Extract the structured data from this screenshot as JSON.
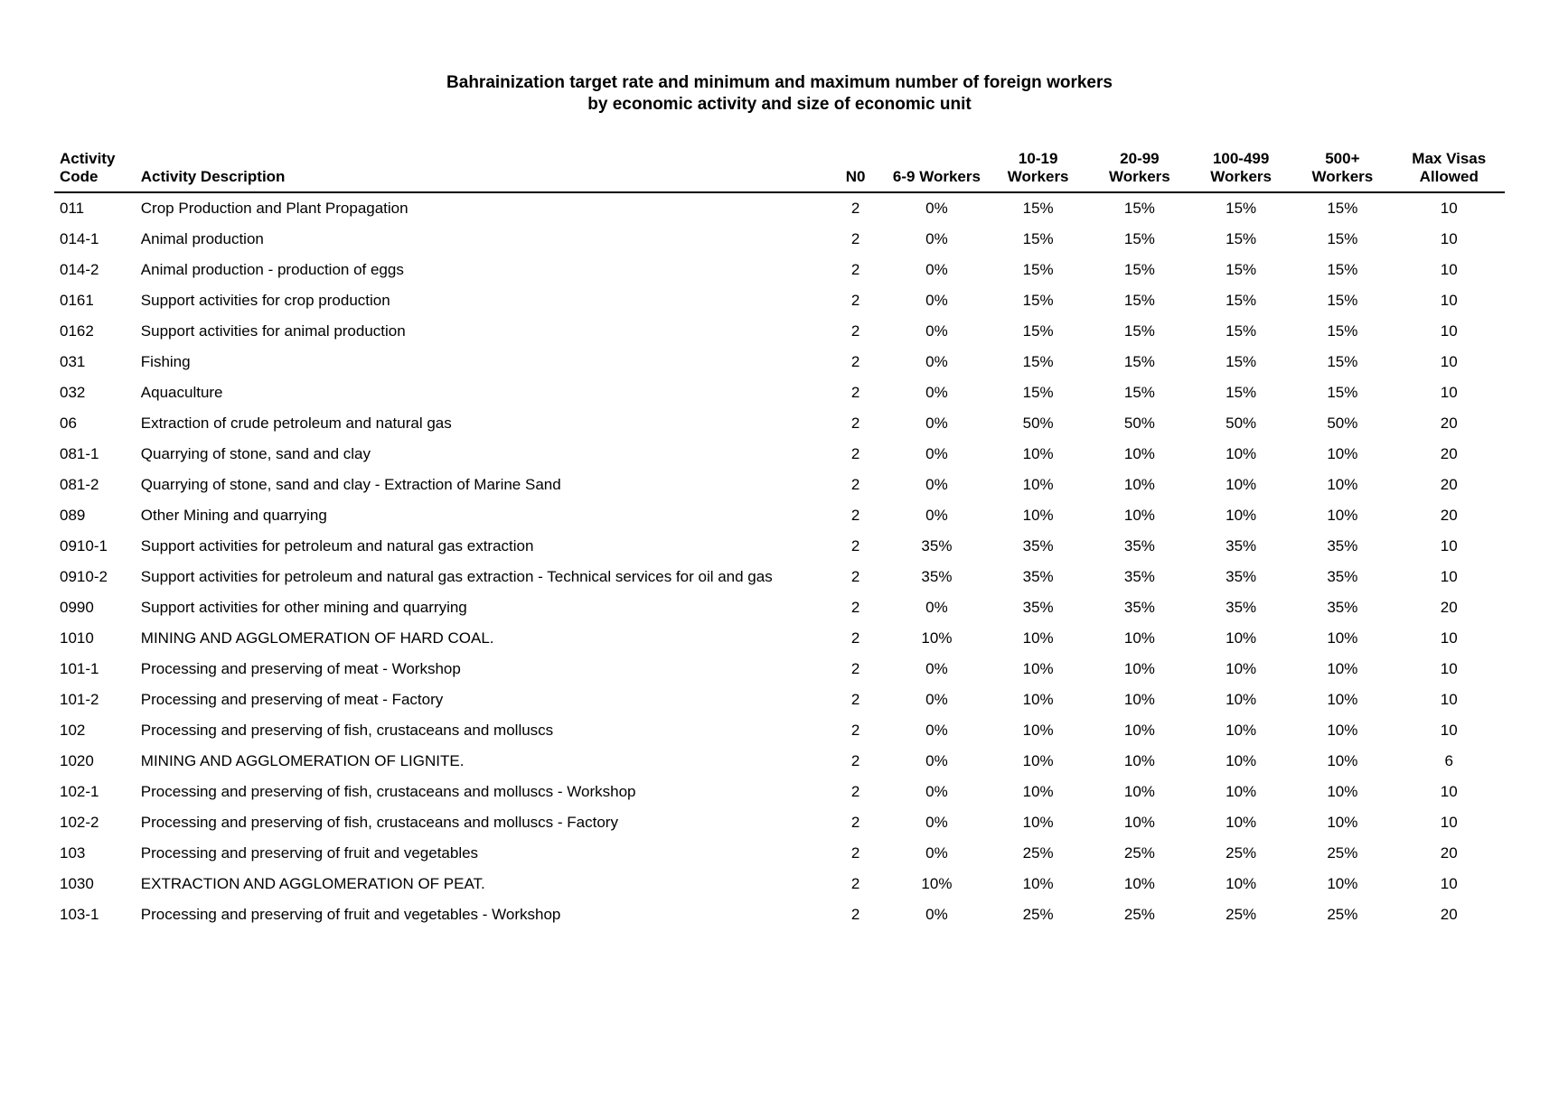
{
  "title_line1": "Bahrainization target rate and minimum and maximum number of foreign workers",
  "title_line2": "by economic activity and size of economic unit",
  "columns": [
    "Activity Code",
    "Activity Description",
    "N0",
    "6-9 Workers",
    "10-19 Workers",
    "20-99 Workers",
    "100-499 Workers",
    "500+ Workers",
    "Max Visas Allowed"
  ],
  "rows": [
    {
      "code": "011",
      "desc": "Crop Production and Plant Propagation",
      "n0": "2",
      "w6_9": "0%",
      "w10_19": "15%",
      "w20_99": "15%",
      "w100_499": "15%",
      "w500": "15%",
      "max": "10"
    },
    {
      "code": "014-1",
      "desc": "Animal production",
      "n0": "2",
      "w6_9": "0%",
      "w10_19": "15%",
      "w20_99": "15%",
      "w100_499": "15%",
      "w500": "15%",
      "max": "10"
    },
    {
      "code": "014-2",
      "desc": "Animal production - production of eggs",
      "n0": "2",
      "w6_9": "0%",
      "w10_19": "15%",
      "w20_99": "15%",
      "w100_499": "15%",
      "w500": "15%",
      "max": "10"
    },
    {
      "code": "0161",
      "desc": "Support activities for crop production",
      "n0": "2",
      "w6_9": "0%",
      "w10_19": "15%",
      "w20_99": "15%",
      "w100_499": "15%",
      "w500": "15%",
      "max": "10"
    },
    {
      "code": "0162",
      "desc": "Support activities for animal production",
      "n0": "2",
      "w6_9": "0%",
      "w10_19": "15%",
      "w20_99": "15%",
      "w100_499": "15%",
      "w500": "15%",
      "max": "10"
    },
    {
      "code": "031",
      "desc": "Fishing",
      "n0": "2",
      "w6_9": "0%",
      "w10_19": "15%",
      "w20_99": "15%",
      "w100_499": "15%",
      "w500": "15%",
      "max": "10"
    },
    {
      "code": "032",
      "desc": "Aquaculture",
      "n0": "2",
      "w6_9": "0%",
      "w10_19": "15%",
      "w20_99": "15%",
      "w100_499": "15%",
      "w500": "15%",
      "max": "10"
    },
    {
      "code": "06",
      "desc": "Extraction of crude petroleum and natural gas",
      "n0": "2",
      "w6_9": "0%",
      "w10_19": "50%",
      "w20_99": "50%",
      "w100_499": "50%",
      "w500": "50%",
      "max": "20"
    },
    {
      "code": "081-1",
      "desc": "Quarrying of stone, sand and clay",
      "n0": "2",
      "w6_9": "0%",
      "w10_19": "10%",
      "w20_99": "10%",
      "w100_499": "10%",
      "w500": "10%",
      "max": "20"
    },
    {
      "code": "081-2",
      "desc": "Quarrying of stone, sand and clay -  Extraction of Marine Sand",
      "n0": "2",
      "w6_9": "0%",
      "w10_19": "10%",
      "w20_99": "10%",
      "w100_499": "10%",
      "w500": "10%",
      "max": "20"
    },
    {
      "code": "089",
      "desc": "Other Mining and quarrying",
      "n0": "2",
      "w6_9": "0%",
      "w10_19": "10%",
      "w20_99": "10%",
      "w100_499": "10%",
      "w500": "10%",
      "max": "20"
    },
    {
      "code": "0910-1",
      "desc": "Support activities for petroleum and natural gas extraction",
      "n0": "2",
      "w6_9": "35%",
      "w10_19": "35%",
      "w20_99": "35%",
      "w100_499": "35%",
      "w500": "35%",
      "max": "10"
    },
    {
      "code": "0910-2",
      "desc": "Support activities for petroleum and natural gas extraction - Technical services for oil and gas",
      "n0": "2",
      "w6_9": "35%",
      "w10_19": "35%",
      "w20_99": "35%",
      "w100_499": "35%",
      "w500": "35%",
      "max": "10"
    },
    {
      "code": "0990",
      "desc": "Support activities for other mining and quarrying",
      "n0": "2",
      "w6_9": "0%",
      "w10_19": "35%",
      "w20_99": "35%",
      "w100_499": "35%",
      "w500": "35%",
      "max": "20"
    },
    {
      "code": "1010",
      "desc": "MINING AND AGGLOMERATION OF HARD COAL.",
      "n0": "2",
      "w6_9": "10%",
      "w10_19": "10%",
      "w20_99": "10%",
      "w100_499": "10%",
      "w500": "10%",
      "max": "10"
    },
    {
      "code": "101-1",
      "desc": "Processing and preserving of meat - Workshop",
      "n0": "2",
      "w6_9": "0%",
      "w10_19": "10%",
      "w20_99": "10%",
      "w100_499": "10%",
      "w500": "10%",
      "max": "10"
    },
    {
      "code": "101-2",
      "desc": "Processing and preserving of meat - Factory",
      "n0": "2",
      "w6_9": "0%",
      "w10_19": "10%",
      "w20_99": "10%",
      "w100_499": "10%",
      "w500": "10%",
      "max": "10"
    },
    {
      "code": "102",
      "desc": "Processing and preserving of fish, crustaceans and molluscs",
      "n0": "2",
      "w6_9": "0%",
      "w10_19": "10%",
      "w20_99": "10%",
      "w100_499": "10%",
      "w500": "10%",
      "max": "10"
    },
    {
      "code": "1020",
      "desc": "MINING AND AGGLOMERATION OF LIGNITE.",
      "n0": "2",
      "w6_9": "0%",
      "w10_19": "10%",
      "w20_99": "10%",
      "w100_499": "10%",
      "w500": "10%",
      "max": "6"
    },
    {
      "code": "102-1",
      "desc": "Processing and preserving of fish, crustaceans and molluscs - Workshop",
      "n0": "2",
      "w6_9": "0%",
      "w10_19": "10%",
      "w20_99": "10%",
      "w100_499": "10%",
      "w500": "10%",
      "max": "10"
    },
    {
      "code": "102-2",
      "desc": "Processing and preserving of fish, crustaceans and molluscs - Factory",
      "n0": "2",
      "w6_9": "0%",
      "w10_19": "10%",
      "w20_99": "10%",
      "w100_499": "10%",
      "w500": "10%",
      "max": "10"
    },
    {
      "code": "103",
      "desc": "Processing and preserving of fruit and vegetables",
      "n0": "2",
      "w6_9": "0%",
      "w10_19": "25%",
      "w20_99": "25%",
      "w100_499": "25%",
      "w500": "25%",
      "max": "20"
    },
    {
      "code": "1030",
      "desc": "EXTRACTION AND AGGLOMERATION OF PEAT.",
      "n0": "2",
      "w6_9": "10%",
      "w10_19": "10%",
      "w20_99": "10%",
      "w100_499": "10%",
      "w500": "10%",
      "max": "10"
    },
    {
      "code": "103-1",
      "desc": "Processing and preserving of fruit and vegetables - Workshop",
      "n0": "2",
      "w6_9": "0%",
      "w10_19": "25%",
      "w20_99": "25%",
      "w100_499": "25%",
      "w500": "25%",
      "max": "20"
    }
  ]
}
